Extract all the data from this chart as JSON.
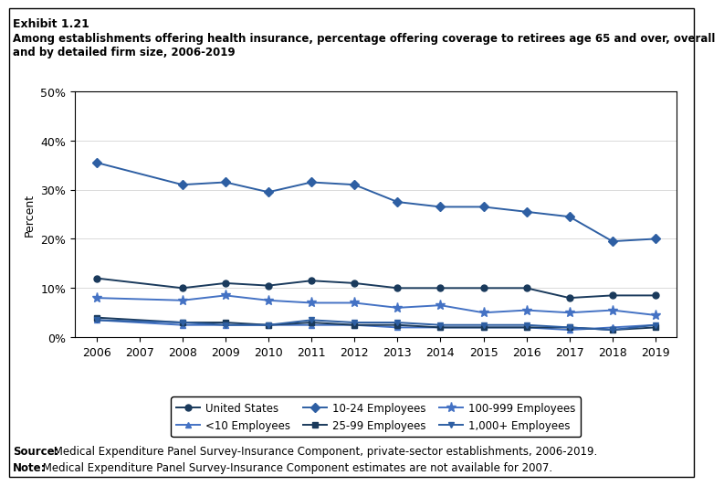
{
  "years": [
    2006,
    2007,
    2008,
    2009,
    2010,
    2011,
    2012,
    2013,
    2014,
    2015,
    2016,
    2017,
    2018,
    2019
  ],
  "series": {
    "United States": {
      "values": [
        12.0,
        null,
        10.0,
        11.0,
        10.5,
        11.5,
        11.0,
        10.0,
        10.0,
        10.0,
        10.0,
        8.0,
        8.5,
        8.5
      ],
      "color": "#1a3a5c",
      "marker": "o",
      "linewidth": 1.4,
      "markersize": 5
    },
    "<10 Employees": {
      "values": [
        3.5,
        null,
        2.5,
        2.5,
        2.5,
        2.5,
        2.5,
        2.0,
        2.0,
        2.0,
        2.0,
        1.5,
        2.0,
        2.5
      ],
      "color": "#4472c4",
      "marker": "^",
      "linewidth": 1.4,
      "markersize": 5
    },
    "10-24 Employees": {
      "values": [
        35.5,
        null,
        31.0,
        31.5,
        29.5,
        31.5,
        31.0,
        27.5,
        26.5,
        26.5,
        25.5,
        24.5,
        19.5,
        20.0
      ],
      "color": "#2e5fa3",
      "marker": "D",
      "linewidth": 1.4,
      "markersize": 5
    },
    "25-99 Employees": {
      "values": [
        4.0,
        null,
        3.0,
        3.0,
        2.5,
        3.0,
        2.5,
        2.5,
        2.0,
        2.0,
        2.0,
        2.0,
        1.5,
        2.0
      ],
      "color": "#1a3a5c",
      "marker": "s",
      "linewidth": 1.4,
      "markersize": 5
    },
    "100-999 Employees": {
      "values": [
        8.0,
        null,
        7.5,
        8.5,
        7.5,
        7.0,
        7.0,
        6.0,
        6.5,
        5.0,
        5.5,
        5.0,
        5.5,
        4.5
      ],
      "color": "#4472c4",
      "marker": "*",
      "linewidth": 1.4,
      "markersize": 8
    },
    "1,000+ Employees": {
      "values": [
        3.5,
        null,
        3.0,
        2.5,
        2.5,
        3.5,
        3.0,
        3.0,
        2.5,
        2.5,
        2.5,
        2.0,
        1.5,
        2.5
      ],
      "color": "#2e5fa3",
      "marker": "v",
      "linewidth": 1.4,
      "markersize": 5
    }
  },
  "title_line1": "Exhibit 1.21",
  "title_line2": "Among establishments offering health insurance, percentage offering coverage to retirees age 65 and over, overall\nand by detailed firm size, 2006-2019",
  "ylabel": "Percent",
  "ylim": [
    0,
    50
  ],
  "yticks": [
    0,
    10,
    20,
    30,
    40,
    50
  ],
  "ytick_labels": [
    "0%",
    "10%",
    "20%",
    "30%",
    "40%",
    "50%"
  ],
  "source_bold": "Source:",
  "source_rest": " Medical Expenditure Panel Survey-Insurance Component, private-sector establishments, 2006-2019.",
  "note_bold": "Note:",
  "note_rest": " Medical Expenditure Panel Survey-Insurance Component estimates are not available for 2007.",
  "bg_color": "#ffffff",
  "legend_order": [
    "United States",
    "<10 Employees",
    "10-24 Employees",
    "25-99 Employees",
    "100-999 Employees",
    "1,000+ Employees"
  ]
}
